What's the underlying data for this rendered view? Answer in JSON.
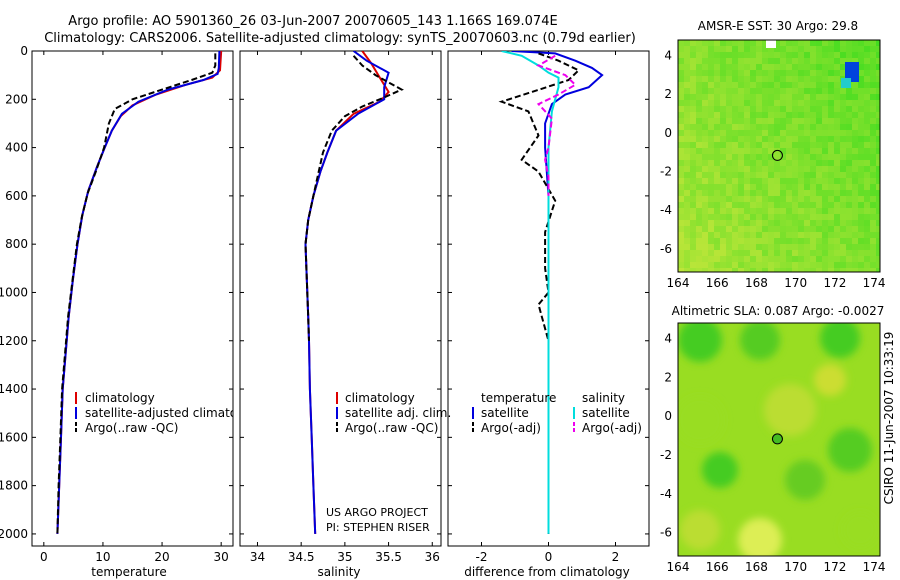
{
  "header": {
    "title_line1": "Argo profile: AO 5901360_26 03-Jun-2007 20070605_143 1.166S 169.074E",
    "title_line2": "Climatology: CARS2006. Satellite-adjusted climatology: synTS_20070603.nc (0.79d earlier)"
  },
  "side_label": "CSIRO 11-Jun-2007 10:33:19",
  "credits": {
    "line1": "US ARGO PROJECT",
    "line2": "PI: STEPHEN RISER"
  },
  "colors": {
    "climatology": "#dd0000",
    "satellite": "#0000dd",
    "argo": "#000000",
    "salinity_sat": "#00dddd",
    "salinity_argo": "#ee00ee",
    "map_green": "#66dd22",
    "map_yellow": "#ccee44"
  },
  "chart_data": [
    {
      "type": "line",
      "panel": "temperature",
      "xlabel": "temperature",
      "ylabel": "",
      "xlim": [
        -2,
        32
      ],
      "ylim": [
        2050,
        0
      ],
      "xticks": [
        "0",
        "10",
        "20",
        "30"
      ],
      "yticks": [
        "0",
        "200",
        "400",
        "600",
        "800",
        "1000",
        "1200",
        "1400",
        "1600",
        "1800",
        "2000"
      ],
      "legend": [
        "climatology",
        "satellite-adjusted climatology",
        "Argo(..raw -QC)"
      ],
      "series": [
        {
          "name": "climatology",
          "color": "red",
          "style": "solid",
          "points": [
            [
              30,
              0
            ],
            [
              29.8,
              80
            ],
            [
              28.5,
              110
            ],
            [
              24,
              140
            ],
            [
              19,
              180
            ],
            [
              15,
              225
            ],
            [
              13,
              270
            ],
            [
              11.5,
              330
            ],
            [
              10.3,
              400
            ],
            [
              9,
              480
            ],
            [
              7.5,
              580
            ],
            [
              6.5,
              680
            ],
            [
              5.7,
              800
            ],
            [
              4.9,
              950
            ],
            [
              4.2,
              1100
            ],
            [
              3.7,
              1250
            ],
            [
              3.2,
              1400
            ],
            [
              2.9,
              1600
            ],
            [
              2.6,
              1800
            ],
            [
              2.3,
              2000
            ]
          ]
        },
        {
          "name": "satellite-adjusted climatology",
          "color": "blue",
          "style": "solid",
          "points": [
            [
              29.7,
              0
            ],
            [
              29.6,
              70
            ],
            [
              29.4,
              95
            ],
            [
              27,
              120
            ],
            [
              21,
              160
            ],
            [
              16,
              210
            ],
            [
              13.2,
              260
            ],
            [
              11.5,
              330
            ],
            [
              10.3,
              400
            ],
            [
              9,
              480
            ],
            [
              7.5,
              580
            ],
            [
              6.5,
              680
            ],
            [
              5.7,
              800
            ],
            [
              4.9,
              950
            ],
            [
              4.2,
              1100
            ],
            [
              3.7,
              1250
            ],
            [
              3.2,
              1400
            ],
            [
              2.9,
              1600
            ],
            [
              2.6,
              1800
            ],
            [
              2.3,
              2000
            ]
          ]
        },
        {
          "name": "Argo(..raw -QC)",
          "color": "black",
          "style": "dashed",
          "points": [
            [
              29,
              10
            ],
            [
              29,
              60
            ],
            [
              28.5,
              90
            ],
            [
              25,
              120
            ],
            [
              20,
              160
            ],
            [
              15,
              200
            ],
            [
              12,
              240
            ],
            [
              11,
              300
            ],
            [
              10.2,
              400
            ],
            [
              8.8,
              500
            ],
            [
              7.4,
              590
            ],
            [
              6.4,
              690
            ],
            [
              5.6,
              800
            ],
            [
              4.8,
              960
            ],
            [
              4.1,
              1100
            ],
            [
              3.6,
              1250
            ],
            [
              3.1,
              1400
            ],
            [
              2.8,
              1600
            ],
            [
              2.5,
              1800
            ],
            [
              2.3,
              2000
            ]
          ]
        }
      ]
    },
    {
      "type": "line",
      "panel": "salinity",
      "xlabel": "salinity",
      "xlim": [
        33.8,
        36.1
      ],
      "ylim": [
        2050,
        0
      ],
      "xticks": [
        "34",
        "34.5",
        "35",
        "35.5",
        "36"
      ],
      "legend": [
        "climatology",
        "satellite adj. clim.",
        "Argo(..raw -QC)"
      ],
      "series": [
        {
          "name": "climatology",
          "color": "red",
          "style": "solid",
          "points": [
            [
              35.2,
              0
            ],
            [
              35.3,
              50
            ],
            [
              35.4,
              110
            ],
            [
              35.5,
              170
            ],
            [
              35.4,
              210
            ],
            [
              35.1,
              260
            ],
            [
              34.9,
              330
            ],
            [
              34.8,
              420
            ],
            [
              34.72,
              500
            ],
            [
              34.64,
              600
            ],
            [
              34.58,
              700
            ],
            [
              34.55,
              800
            ],
            [
              34.56,
              900
            ],
            [
              34.57,
              1000
            ],
            [
              34.58,
              1100
            ],
            [
              34.59,
              1200
            ],
            [
              34.6,
              1400
            ],
            [
              34.62,
              1600
            ],
            [
              34.64,
              1800
            ],
            [
              34.66,
              2000
            ]
          ]
        },
        {
          "name": "satellite adj. clim.",
          "color": "blue",
          "style": "solid",
          "points": [
            [
              35.1,
              0
            ],
            [
              35.25,
              40
            ],
            [
              35.5,
              90
            ],
            [
              35.45,
              150
            ],
            [
              35.45,
              200
            ],
            [
              35.15,
              260
            ],
            [
              34.9,
              330
            ],
            [
              34.8,
              420
            ],
            [
              34.72,
              500
            ],
            [
              34.64,
              600
            ],
            [
              34.58,
              700
            ],
            [
              34.55,
              800
            ],
            [
              34.56,
              900
            ],
            [
              34.57,
              1000
            ],
            [
              34.58,
              1100
            ],
            [
              34.59,
              1200
            ],
            [
              34.6,
              1400
            ],
            [
              34.62,
              1600
            ],
            [
              34.64,
              1800
            ],
            [
              34.66,
              2000
            ]
          ]
        },
        {
          "name": "Argo(..raw -QC)",
          "color": "black",
          "style": "dashed",
          "points": [
            [
              35.1,
              20
            ],
            [
              35.2,
              60
            ],
            [
              35.35,
              100
            ],
            [
              35.5,
              130
            ],
            [
              35.65,
              160
            ],
            [
              35.4,
              200
            ],
            [
              35.2,
              230
            ],
            [
              35.0,
              270
            ],
            [
              34.85,
              330
            ],
            [
              34.75,
              420
            ],
            [
              34.7,
              500
            ],
            [
              34.64,
              600
            ],
            [
              34.58,
              700
            ],
            [
              34.55,
              800
            ],
            [
              34.56,
              900
            ],
            [
              34.57,
              1000
            ],
            [
              34.58,
              1100
            ],
            [
              34.59,
              1200
            ]
          ]
        }
      ]
    },
    {
      "type": "line",
      "panel": "difference",
      "xlabel": "difference from climatology",
      "xlim": [
        -3,
        3
      ],
      "ylim": [
        2050,
        0
      ],
      "xticks": [
        "-2",
        "0",
        "2"
      ],
      "legend_headers": [
        "temperature",
        "salinity"
      ],
      "legend": [
        "satellite",
        "Argo(-adj)",
        "satellite",
        "Argo(-adj)"
      ],
      "series": [
        {
          "name": "temperature satellite",
          "color": "blue",
          "style": "solid",
          "points": [
            [
              -1.1,
              0
            ],
            [
              0.2,
              10
            ],
            [
              0.8,
              40
            ],
            [
              1.3,
              70
            ],
            [
              1.6,
              100
            ],
            [
              1.2,
              150
            ],
            [
              0.5,
              180
            ],
            [
              0.1,
              220
            ],
            [
              -0.1,
              300
            ],
            [
              -0.1,
              400
            ],
            [
              0,
              600
            ],
            [
              0,
              800
            ],
            [
              0,
              1000
            ],
            [
              0,
              1200
            ],
            [
              0,
              1400
            ],
            [
              0,
              1600
            ],
            [
              0,
              1800
            ],
            [
              0,
              2000
            ]
          ]
        },
        {
          "name": "temperature Argo(-adj)",
          "color": "black",
          "style": "dashed",
          "points": [
            [
              -0.3,
              10
            ],
            [
              0.3,
              40
            ],
            [
              0.9,
              80
            ],
            [
              0.6,
              120
            ],
            [
              -0.5,
              170
            ],
            [
              -1.4,
              210
            ],
            [
              -0.6,
              250
            ],
            [
              -0.3,
              350
            ],
            [
              -0.8,
              450
            ],
            [
              -0.3,
              500
            ],
            [
              0.2,
              620
            ],
            [
              -0.1,
              750
            ],
            [
              -0.1,
              900
            ],
            [
              0,
              1000
            ],
            [
              -0.3,
              1050
            ],
            [
              -0.2,
              1100
            ],
            [
              0,
              1200
            ],
            [
              0,
              1400
            ],
            [
              0,
              1600
            ],
            [
              0,
              1800
            ],
            [
              0,
              2000
            ]
          ]
        },
        {
          "name": "salinity satellite",
          "color": "cyan",
          "style": "solid",
          "points": [
            [
              -1.4,
              0
            ],
            [
              -0.8,
              20
            ],
            [
              -0.3,
              60
            ],
            [
              0,
              90
            ],
            [
              0.3,
              110
            ],
            [
              0.3,
              150
            ],
            [
              0.1,
              250
            ],
            [
              0.0,
              400
            ],
            [
              0.0,
              600
            ],
            [
              0,
              800
            ],
            [
              0,
              1000
            ],
            [
              0,
              1200
            ],
            [
              0,
              1400
            ],
            [
              0,
              1600
            ],
            [
              0,
              1800
            ],
            [
              0,
              2000
            ]
          ]
        },
        {
          "name": "salinity Argo(-adj)",
          "color": "magenta",
          "style": "dashed",
          "points": [
            [
              0.2,
              20
            ],
            [
              -0.3,
              60
            ],
            [
              0.5,
              100
            ],
            [
              0.8,
              140
            ],
            [
              0.3,
              180
            ],
            [
              -0.3,
              220
            ],
            [
              0.1,
              280
            ],
            [
              0,
              400
            ],
            [
              -0.1,
              450
            ],
            [
              0,
              520
            ],
            [
              0,
              600
            ]
          ]
        }
      ]
    },
    {
      "type": "heatmap",
      "panel": "sst",
      "title": "AMSR-E SST: 30 Argo: 29.8",
      "xlim": [
        164,
        174.3
      ],
      "ylim": [
        -7.2,
        4.8
      ],
      "xticks": [
        "164",
        "166",
        "168",
        "170",
        "172",
        "174"
      ],
      "yticks": [
        "4",
        "2",
        "0",
        "-2",
        "-4",
        "-6"
      ],
      "marker": {
        "lon": 169.07,
        "lat": -1.17
      }
    },
    {
      "type": "heatmap",
      "panel": "sla",
      "title": "Altimetric SLA: 0.087 Argo: -0.0027",
      "xlim": [
        164,
        174.3
      ],
      "ylim": [
        -7.2,
        4.8
      ],
      "xticks": [
        "164",
        "166",
        "168",
        "170",
        "172",
        "174"
      ],
      "yticks": [
        "4",
        "2",
        "0",
        "-2",
        "-4",
        "-6"
      ],
      "marker": {
        "lon": 169.07,
        "lat": -1.17
      }
    }
  ]
}
